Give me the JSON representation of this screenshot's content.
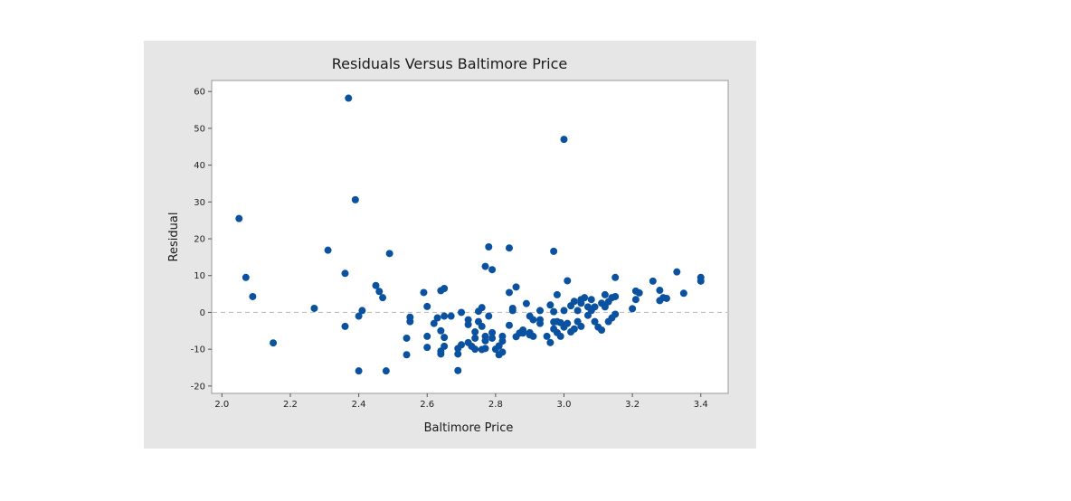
{
  "chart_data": {
    "type": "scatter",
    "title": "Residuals Versus Baltimore Price",
    "xlabel": "Baltimore Price",
    "ylabel": "Residual",
    "xlim": [
      1.97,
      3.48
    ],
    "ylim": [
      -22,
      63
    ],
    "xticks": [
      "2.0",
      "2.2",
      "2.4",
      "2.6",
      "2.8",
      "3.0",
      "3.2",
      "3.4"
    ],
    "yticks": [
      "60",
      "50",
      "40",
      "30",
      "20",
      "10",
      "0",
      "-10",
      "-20"
    ],
    "reference_line": {
      "y": 0,
      "style": "dashed",
      "color": "#c0c0c0"
    },
    "grid": false,
    "marker_color": "#0a52a0",
    "points": [
      [
        2.05,
        25.5
      ],
      [
        2.07,
        9.5
      ],
      [
        2.09,
        4.3
      ],
      [
        2.15,
        -8.3
      ],
      [
        2.27,
        1.1
      ],
      [
        2.31,
        16.9
      ],
      [
        2.36,
        10.6
      ],
      [
        2.36,
        -3.8
      ],
      [
        2.37,
        58.2
      ],
      [
        2.39,
        30.6
      ],
      [
        2.4,
        -1.0
      ],
      [
        2.4,
        -15.9
      ],
      [
        2.41,
        0.5
      ],
      [
        2.45,
        7.3
      ],
      [
        2.46,
        5.7
      ],
      [
        2.47,
        4.0
      ],
      [
        2.48,
        -15.9
      ],
      [
        2.49,
        16.0
      ],
      [
        2.54,
        -11.5
      ],
      [
        2.54,
        -7.0
      ],
      [
        2.55,
        -1.3
      ],
      [
        2.55,
        -2.5
      ],
      [
        2.59,
        5.4
      ],
      [
        2.6,
        1.6
      ],
      [
        2.6,
        -6.5
      ],
      [
        2.6,
        -9.5
      ],
      [
        2.62,
        -3.0
      ],
      [
        2.63,
        -1.5
      ],
      [
        2.64,
        5.9
      ],
      [
        2.64,
        -10.5
      ],
      [
        2.64,
        -11.3
      ],
      [
        2.64,
        -5.0
      ],
      [
        2.65,
        6.5
      ],
      [
        2.65,
        -6.8
      ],
      [
        2.65,
        -9.2
      ],
      [
        2.65,
        -1.0
      ],
      [
        2.67,
        -1.0
      ],
      [
        2.69,
        -15.8
      ],
      [
        2.69,
        -9.8
      ],
      [
        2.69,
        -11.3
      ],
      [
        2.7,
        0.0
      ],
      [
        2.7,
        -8.8
      ],
      [
        2.72,
        -2.0
      ],
      [
        2.72,
        -3.3
      ],
      [
        2.72,
        -8.2
      ],
      [
        2.73,
        -9.2
      ],
      [
        2.74,
        -5.3
      ],
      [
        2.74,
        -7.0
      ],
      [
        2.74,
        -10.0
      ],
      [
        2.75,
        0.3
      ],
      [
        2.75,
        -2.5
      ],
      [
        2.76,
        1.3
      ],
      [
        2.76,
        -3.8
      ],
      [
        2.76,
        -10.1
      ],
      [
        2.77,
        -6.5
      ],
      [
        2.77,
        -7.7
      ],
      [
        2.77,
        -9.8
      ],
      [
        2.77,
        12.5
      ],
      [
        2.78,
        17.8
      ],
      [
        2.78,
        -1.0
      ],
      [
        2.79,
        11.6
      ],
      [
        2.79,
        -5.5
      ],
      [
        2.79,
        -7.0
      ],
      [
        2.8,
        -10.0
      ],
      [
        2.81,
        -9.1
      ],
      [
        2.81,
        -11.5
      ],
      [
        2.82,
        -6.5
      ],
      [
        2.82,
        -7.8
      ],
      [
        2.82,
        -10.8
      ],
      [
        2.84,
        17.5
      ],
      [
        2.84,
        5.4
      ],
      [
        2.84,
        -3.5
      ],
      [
        2.85,
        1.1
      ],
      [
        2.85,
        0.5
      ],
      [
        2.86,
        6.9
      ],
      [
        2.86,
        -6.6
      ],
      [
        2.87,
        -5.6
      ],
      [
        2.88,
        -5.6
      ],
      [
        2.88,
        -4.8
      ],
      [
        2.89,
        2.4
      ],
      [
        2.9,
        -1.0
      ],
      [
        2.9,
        -5.5
      ],
      [
        2.9,
        -6.1
      ],
      [
        2.91,
        -2.0
      ],
      [
        2.91,
        -6.5
      ],
      [
        2.93,
        0.5
      ],
      [
        2.93,
        -2.0
      ],
      [
        2.93,
        -3.0
      ],
      [
        2.95,
        -6.5
      ],
      [
        2.96,
        -8.2
      ],
      [
        2.96,
        2.0
      ],
      [
        2.97,
        16.6
      ],
      [
        2.97,
        -2.6
      ],
      [
        2.97,
        0.2
      ],
      [
        2.97,
        -4.5
      ],
      [
        2.98,
        4.8
      ],
      [
        2.98,
        -2.5
      ],
      [
        2.98,
        -5.5
      ],
      [
        2.99,
        -2.8
      ],
      [
        2.99,
        -6.5
      ],
      [
        3.0,
        47.0
      ],
      [
        3.0,
        -4.0
      ],
      [
        3.0,
        0.5
      ],
      [
        3.01,
        8.6
      ],
      [
        3.01,
        -3.0
      ],
      [
        3.02,
        -5.3
      ],
      [
        3.02,
        1.8
      ],
      [
        3.03,
        3.0
      ],
      [
        3.03,
        -4.5
      ],
      [
        3.04,
        0.5
      ],
      [
        3.04,
        -2.5
      ],
      [
        3.05,
        3.5
      ],
      [
        3.05,
        2.5
      ],
      [
        3.05,
        -3.8
      ],
      [
        3.06,
        4.0
      ],
      [
        3.07,
        1.5
      ],
      [
        3.07,
        -0.8
      ],
      [
        3.08,
        0.5
      ],
      [
        3.08,
        3.5
      ],
      [
        3.09,
        -2.5
      ],
      [
        3.09,
        1.5
      ],
      [
        3.1,
        -4.0
      ],
      [
        3.11,
        -4.8
      ],
      [
        3.11,
        2.5
      ],
      [
        3.12,
        4.8
      ],
      [
        3.12,
        1.5
      ],
      [
        3.13,
        2.9
      ],
      [
        3.13,
        -2.5
      ],
      [
        3.14,
        4.0
      ],
      [
        3.14,
        -1.5
      ],
      [
        3.15,
        4.3
      ],
      [
        3.15,
        9.5
      ],
      [
        3.15,
        -0.5
      ],
      [
        3.2,
        1.0
      ],
      [
        3.21,
        3.5
      ],
      [
        3.21,
        5.8
      ],
      [
        3.22,
        5.3
      ],
      [
        3.26,
        8.5
      ],
      [
        3.28,
        6.0
      ],
      [
        3.28,
        3.2
      ],
      [
        3.29,
        4.0
      ],
      [
        3.3,
        3.8
      ],
      [
        3.33,
        11.0
      ],
      [
        3.35,
        5.2
      ],
      [
        3.4,
        9.5
      ],
      [
        3.4,
        8.5
      ]
    ]
  }
}
